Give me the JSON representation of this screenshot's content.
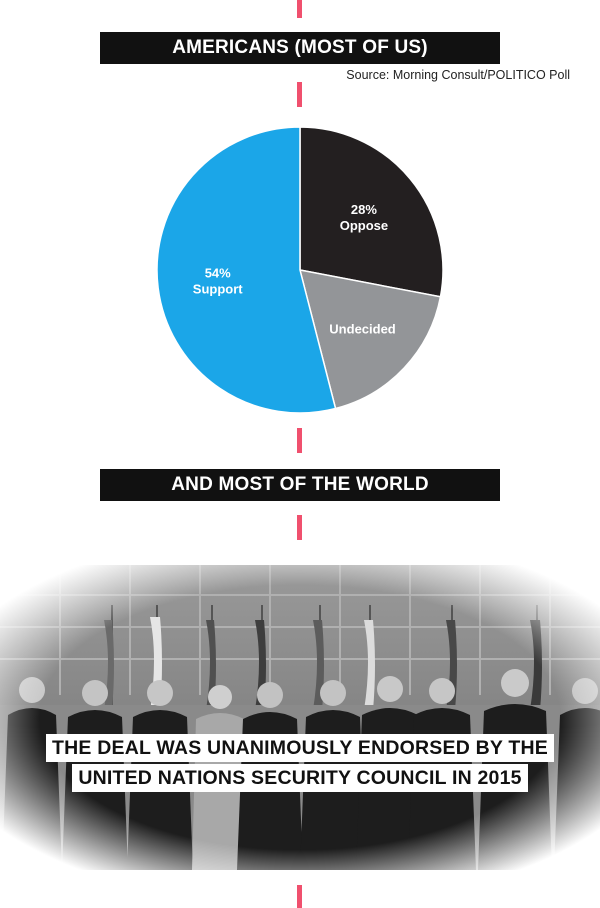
{
  "header": {
    "title": "AMERICANS (MOST OF US)",
    "source": "Source: Morning Consult/POLITICO Poll"
  },
  "chart_data": {
    "type": "pie",
    "slices": [
      {
        "label": "Oppose",
        "value": 28,
        "display": "28%",
        "color": "#231f20"
      },
      {
        "label": "Undecided",
        "value": 18,
        "display": "",
        "color": "#939598"
      },
      {
        "label": "Support",
        "value": 54,
        "display": "54%",
        "color": "#1ba6e8"
      }
    ]
  },
  "section2": {
    "title": "AND MOST OF THE WORLD"
  },
  "photo": {
    "caption_line1": "THE DEAL WAS UNANIMOUSLY ENDORSED BY THE",
    "caption_line2": "UNITED NATIONS SECURITY COUNCIL IN 2015"
  },
  "colors": {
    "accent_dash": "#f0506e",
    "banner_bg": "#111111"
  }
}
